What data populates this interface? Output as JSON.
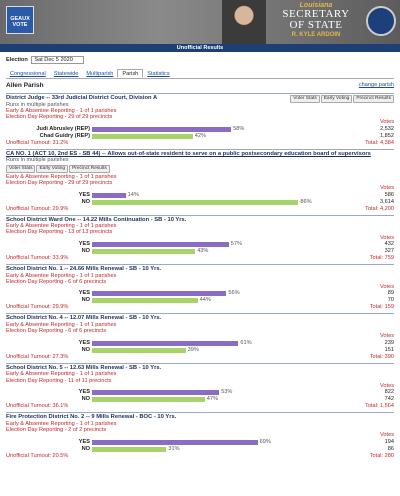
{
  "header": {
    "logo": "GEAUX VOTE",
    "state": "Louisiana",
    "office_1": "SECRETARY",
    "office_2": "OF STATE",
    "official": "R. KYLE ARDOIN",
    "banner": "Unofficial Results"
  },
  "election": {
    "label": "Election",
    "selected": "Sat Dec 5 2020"
  },
  "tabs": [
    "Congressional",
    "Statewide",
    "Multiparish",
    "Parish",
    "Statistics"
  ],
  "parish": {
    "name": "Allen Parish",
    "change": "change parish"
  },
  "races": [
    {
      "title": "District Judge -- 33rd Judicial District Court, Division A",
      "note": "Runs in multiple parishes",
      "buttons": [
        "Voter Stats",
        "Early Voting",
        "Precinct Results"
      ],
      "early": "Early & Absentee Reporting - 1 of 1 parishes",
      "election_day": "Election Day Reporting - 29 of 29 precincts",
      "votes_label": "Votes",
      "choices": [
        {
          "name": "Judi Abrusley (REP)",
          "pct": 58,
          "pct_label": "58%",
          "votes": "2,532"
        },
        {
          "name": "Chad Guidry (REP)",
          "pct": 42,
          "pct_label": "42%",
          "votes": "1,852"
        }
      ],
      "turnout": "Unofficial Turnout: 31.2%",
      "total": "Total: 4,384"
    },
    {
      "title": "CA NO. 1 (ACT 10, 2nd ES - SB 44) -- Allows out-of-state resident to serve on a public postsecondary education board of supervisors",
      "note": "Runs in multiple parishes",
      "buttons": [
        "Voter Stats",
        "Early Voting",
        "Precinct Results"
      ],
      "early": "Early & Absentee Reporting - 1 of 1 parishes",
      "election_day": "Election Day Reporting - 29 of 29 precincts",
      "votes_label": "Votes",
      "choices": [
        {
          "name": "YES",
          "pct": 14,
          "pct_label": "14%",
          "votes": "586"
        },
        {
          "name": "NO",
          "pct": 86,
          "pct_label": "86%",
          "votes": "3,614"
        }
      ],
      "turnout": "Unofficial Turnout: 29.9%",
      "total": "Total: 4,200"
    },
    {
      "title": "School District Ward One -- 14.22 Mills Continuation - SB - 10 Yrs.",
      "early": "Early & Absentee Reporting - 1 of 1 parishes",
      "election_day": "Election Day Reporting - 13 of 13 precincts",
      "votes_label": "Votes",
      "choices": [
        {
          "name": "YES",
          "pct": 57,
          "pct_label": "57%",
          "votes": "432"
        },
        {
          "name": "NO",
          "pct": 43,
          "pct_label": "43%",
          "votes": "327"
        }
      ],
      "turnout": "Unofficial Turnout: 33.9%",
      "total": "Total: 759"
    },
    {
      "title": "School District No. 1 -- 24.66 Mills Renewal - SB - 10 Yrs.",
      "early": "Early & Absentee Reporting - 1 of 1 parishes",
      "election_day": "Election Day Reporting - 6 of 6 precincts",
      "votes_label": "Votes",
      "choices": [
        {
          "name": "YES",
          "pct": 56,
          "pct_label": "56%",
          "votes": "89"
        },
        {
          "name": "NO",
          "pct": 44,
          "pct_label": "44%",
          "votes": "70"
        }
      ],
      "turnout": "Unofficial Turnout: 29.9%",
      "total": "Total: 159"
    },
    {
      "title": "School District No. 4 -- 12.07 Mills Renewal - SB - 10 Yrs.",
      "early": "Early & Absentee Reporting - 1 of 1 parishes",
      "election_day": "Election Day Reporting - 6 of 6 precincts",
      "votes_label": "Votes",
      "choices": [
        {
          "name": "YES",
          "pct": 61,
          "pct_label": "61%",
          "votes": "239"
        },
        {
          "name": "NO",
          "pct": 39,
          "pct_label": "39%",
          "votes": "151"
        }
      ],
      "turnout": "Unofficial Turnout: 27.3%",
      "total": "Total: 390"
    },
    {
      "title": "School District No. 5 -- 12.63 Mills Renewal - SB - 10 Yrs.",
      "early": "Early & Absentee Reporting - 1 of 1 parishes",
      "election_day": "Election Day Reporting - 11 of 11 precincts",
      "votes_label": "Votes",
      "choices": [
        {
          "name": "YES",
          "pct": 53,
          "pct_label": "53%",
          "votes": "822"
        },
        {
          "name": "NO",
          "pct": 47,
          "pct_label": "47%",
          "votes": "742"
        }
      ],
      "turnout": "Unofficial Turnout: 36.1%",
      "total": "Total: 1,564"
    },
    {
      "title": "Fire Protection District No. 2 -- 9 Mills Renewal - BOC - 10 Yrs.",
      "early": "Early & Absentee Reporting - 1 of 1 parishes",
      "election_day": "Election Day Reporting - 2 of 2 precincts",
      "votes_label": "Votes",
      "choices": [
        {
          "name": "YES",
          "pct": 69,
          "pct_label": "69%",
          "votes": "194"
        },
        {
          "name": "NO",
          "pct": 31,
          "pct_label": "31%",
          "votes": "86"
        }
      ],
      "turnout": "Unofficial Turnout: 20.5%",
      "total": "Total: 280"
    }
  ]
}
